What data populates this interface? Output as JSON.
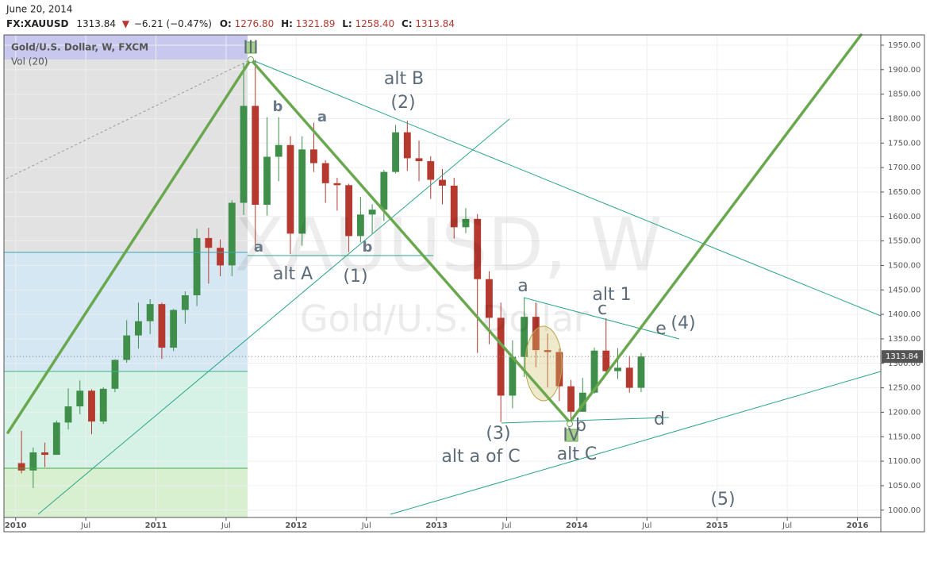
{
  "header": {
    "date": "June 20, 2014",
    "symbol": "FX:XAUUSD",
    "change": "−6.21 (−0.47%)",
    "open_label": "O:",
    "open": "1276.80",
    "high_label": "H:",
    "high": "1321.89",
    "low_label": "L:",
    "low": "1258.40",
    "close_label": "C:",
    "close": "1313.84"
  },
  "legend": {
    "series": "Gold/U.S. Dollar, W, FXCM",
    "indicator": "Vol (20)"
  },
  "watermark": {
    "symbol": "XAUUSD, W",
    "name": "Gold/U.S. Dollar"
  },
  "annotations": [
    "alt B",
    "(2)",
    "b",
    "a",
    "a",
    "b",
    "alt A",
    "(1)",
    "a",
    "alt 1",
    "c",
    "e",
    "(4)",
    "(3)",
    "alt a of C",
    "b",
    "alt C",
    "d",
    "(5)",
    "III",
    "IV"
  ],
  "chart_data": {
    "type": "candlestick",
    "up_color": "#3f8f4a",
    "down_color": "#b5392f",
    "grid": true,
    "last_price": 1313.84,
    "x": [
      "2010-01",
      "2010-02",
      "2010-03",
      "2010-04",
      "2010-05",
      "2010-06",
      "2010-07",
      "2010-08",
      "2010-09",
      "2010-10",
      "2010-11",
      "2010-12",
      "2011-01",
      "2011-02",
      "2011-03",
      "2011-04",
      "2011-05",
      "2011-06",
      "2011-07",
      "2011-08",
      "2011-09",
      "2011-10",
      "2011-11",
      "2011-12",
      "2012-01",
      "2012-02",
      "2012-03",
      "2012-04",
      "2012-05",
      "2012-06",
      "2012-07",
      "2012-08",
      "2012-09",
      "2012-10",
      "2012-11",
      "2012-12",
      "2013-01",
      "2013-02",
      "2013-03",
      "2013-04",
      "2013-05",
      "2013-06",
      "2013-07",
      "2013-08",
      "2013-09",
      "2013-10",
      "2013-11",
      "2013-12",
      "2014-01",
      "2014-02",
      "2014-03",
      "2014-04",
      "2014-05",
      "2014-06"
    ],
    "open": [
      1096,
      1081,
      1118,
      1113,
      1179,
      1212,
      1244,
      1181,
      1248,
      1307,
      1357,
      1386,
      1421,
      1332,
      1409,
      1439,
      1556,
      1536,
      1500,
      1628,
      1826,
      1624,
      1722,
      1746,
      1565,
      1737,
      1709,
      1668,
      1664,
      1560,
      1604,
      1614,
      1691,
      1772,
      1719,
      1713,
      1675,
      1663,
      1578,
      1595,
      1472,
      1393,
      1234,
      1313,
      1395,
      1327,
      1323,
      1253,
      1201,
      1240,
      1326,
      1284,
      1291,
      1250
    ],
    "high": [
      1162,
      1128,
      1138,
      1183,
      1249,
      1265,
      1247,
      1251,
      1308,
      1388,
      1424,
      1431,
      1424,
      1411,
      1447,
      1575,
      1577,
      1553,
      1633,
      1913,
      1920,
      1803,
      1803,
      1764,
      1764,
      1792,
      1715,
      1679,
      1667,
      1640,
      1625,
      1695,
      1787,
      1796,
      1755,
      1723,
      1697,
      1679,
      1617,
      1605,
      1488,
      1424,
      1347,
      1434,
      1424,
      1361,
      1330,
      1266,
      1270,
      1332,
      1392,
      1331,
      1315,
      1321
    ],
    "low": [
      1075,
      1045,
      1088,
      1113,
      1165,
      1196,
      1155,
      1176,
      1241,
      1301,
      1330,
      1360,
      1309,
      1325,
      1381,
      1417,
      1463,
      1478,
      1478,
      1603,
      1535,
      1602,
      1672,
      1523,
      1540,
      1691,
      1628,
      1612,
      1527,
      1547,
      1565,
      1591,
      1688,
      1693,
      1672,
      1636,
      1625,
      1555,
      1566,
      1321,
      1339,
      1180,
      1208,
      1272,
      1292,
      1251,
      1223,
      1182,
      1201,
      1238,
      1277,
      1268,
      1240,
      1241
    ],
    "close": [
      1081,
      1118,
      1113,
      1179,
      1212,
      1244,
      1181,
      1248,
      1307,
      1357,
      1386,
      1421,
      1332,
      1409,
      1439,
      1556,
      1536,
      1500,
      1628,
      1826,
      1624,
      1722,
      1746,
      1565,
      1737,
      1709,
      1668,
      1664,
      1560,
      1604,
      1614,
      1691,
      1772,
      1719,
      1713,
      1675,
      1663,
      1578,
      1595,
      1472,
      1393,
      1234,
      1313,
      1395,
      1327,
      1323,
      1253,
      1201,
      1240,
      1326,
      1284,
      1291,
      1250,
      1314
    ],
    "xlim": [
      "2009-12",
      "2016-03"
    ],
    "xticks": [
      {
        "value": "2010-01",
        "label": "2010"
      },
      {
        "value": "2010-07",
        "label": "Jul"
      },
      {
        "value": "2011-01",
        "label": "2011"
      },
      {
        "value": "2011-07",
        "label": "Jul"
      },
      {
        "value": "2012-01",
        "label": "2012"
      },
      {
        "value": "2012-07",
        "label": "Jul"
      },
      {
        "value": "2013-01",
        "label": "2013"
      },
      {
        "value": "2013-07",
        "label": "Jul"
      },
      {
        "value": "2014-01",
        "label": "2014"
      },
      {
        "value": "2014-07",
        "label": "Jul"
      },
      {
        "value": "2015-01",
        "label": "2015"
      },
      {
        "value": "2015-07",
        "label": "Jul"
      },
      {
        "value": "2016-01",
        "label": "2016"
      }
    ],
    "ylim": [
      985,
      1971
    ],
    "yticks": [
      {
        "value": 1000,
        "label": "1000.00"
      },
      {
        "value": 1050,
        "label": "1050.00"
      },
      {
        "value": 1100,
        "label": "1100.00"
      },
      {
        "value": 1150,
        "label": "1150.00"
      },
      {
        "value": 1200,
        "label": "1200.00"
      },
      {
        "value": 1250,
        "label": "1250.00"
      },
      {
        "value": 1300,
        "label": "1300.00"
      },
      {
        "value": 1350,
        "label": "1350.00"
      },
      {
        "value": 1400,
        "label": "1400.00"
      },
      {
        "value": 1450,
        "label": "1450.00"
      },
      {
        "value": 1500,
        "label": "1500.00"
      },
      {
        "value": 1550,
        "label": "1550.00"
      },
      {
        "value": 1600,
        "label": "1600.00"
      },
      {
        "value": 1650,
        "label": "1650.00"
      },
      {
        "value": 1700,
        "label": "1700.00"
      },
      {
        "value": 1750,
        "label": "1750.00"
      },
      {
        "value": 1800,
        "label": "1800.00"
      },
      {
        "value": 1850,
        "label": "1850.00"
      },
      {
        "value": 1900,
        "label": "1900.00"
      },
      {
        "value": 1950,
        "label": "1950.00"
      }
    ]
  }
}
